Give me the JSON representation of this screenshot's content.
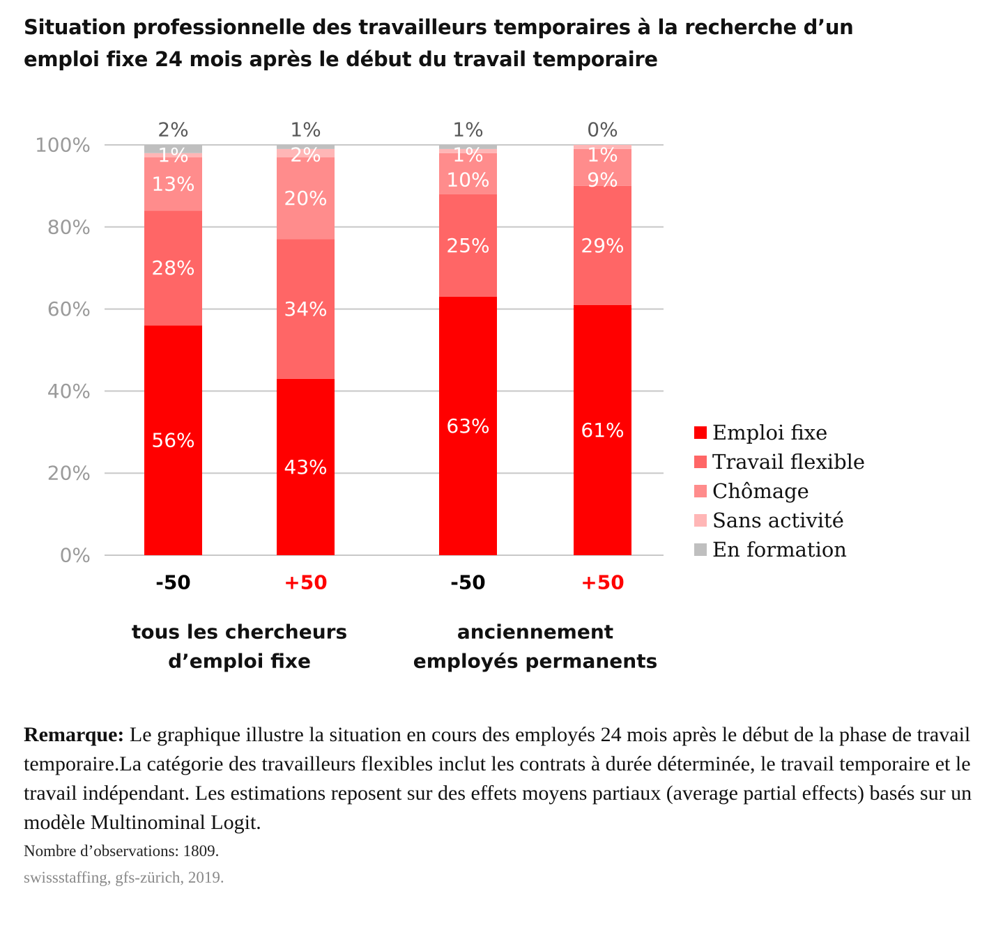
{
  "chart_data": {
    "type": "bar",
    "stacked": true,
    "title": "Situation professionnelle des travailleurs temporaires à la recherche d’un emploi fixe 24 mois après le début du travail temporaire",
    "categories": [
      "-50",
      "+50",
      "-50",
      "+50"
    ],
    "category_colors": [
      "#000000",
      "#ff0000",
      "#000000",
      "#ff0000"
    ],
    "groups": [
      {
        "label_lines": [
          "tous les chercheurs",
          "d’emploi fixe"
        ],
        "categories": [
          0,
          1
        ]
      },
      {
        "label_lines": [
          "anciennement",
          "employés permanents"
        ],
        "categories": [
          2,
          3
        ]
      }
    ],
    "ylim": [
      0,
      100
    ],
    "yticks": [
      "0%",
      "20%",
      "40%",
      "60%",
      "80%",
      "100%"
    ],
    "grid": true,
    "legend_position": "right",
    "series": [
      {
        "name": "Emploi fixe",
        "color": "#ff0000",
        "values": [
          56,
          43,
          63,
          61
        ]
      },
      {
        "name": "Travail flexible",
        "color": "#ff6666",
        "values": [
          28,
          34,
          25,
          29
        ]
      },
      {
        "name": "Chômage",
        "color": "#ff8c8c",
        "values": [
          13,
          20,
          10,
          9
        ]
      },
      {
        "name": "Sans activité",
        "color": "#ffb6b6",
        "values": [
          1,
          2,
          1,
          1
        ]
      },
      {
        "name": "En formation",
        "color": "#bfbfbf",
        "values": [
          2,
          1,
          1,
          0
        ]
      }
    ]
  },
  "note": {
    "label": "Remarque:",
    "text": " Le graphique illustre la situation en cours des employés 24 mois après le début de la phase de travail temporaire.La catégorie des travailleurs flexibles inclut les contrats à durée déterminée, le travail temporaire et le travail indépendant. Les estimations reposent sur des effets moyens partiaux (average partial effects) basés sur un modèle Multinominal Logit."
  },
  "observations": "Nombre d’observations: 1809.",
  "source": "swissstaffing, gfs-zürich, 2019."
}
